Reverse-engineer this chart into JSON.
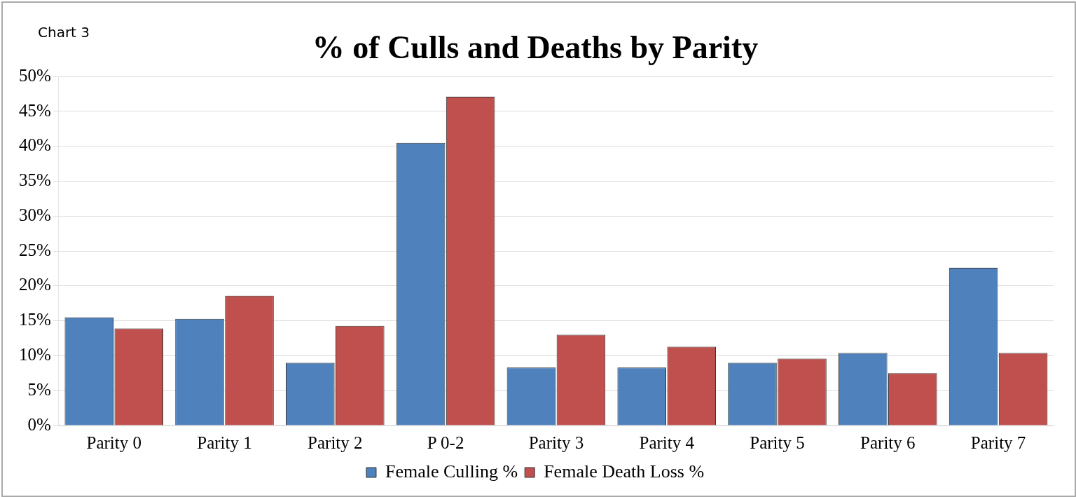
{
  "chart_data": {
    "type": "bar",
    "title": "% of Culls and Deaths by Parity",
    "annotations": [
      "Chart 3"
    ],
    "categories": [
      "Parity 0",
      "Parity 1",
      "Parity 2",
      "P 0-2",
      "Parity 3",
      "Parity 4",
      "Parity 5",
      "Parity 6",
      "Parity 7"
    ],
    "series": [
      {
        "name": "Female Culling %",
        "color": "#4f81bd",
        "values": [
          15.5,
          15.3,
          9.0,
          40.5,
          8.3,
          8.3,
          9.0,
          10.4,
          22.6
        ]
      },
      {
        "name": "Female Death Loss %",
        "color": "#c0504d",
        "values": [
          13.9,
          18.6,
          14.3,
          47.1,
          13.0,
          11.3,
          9.6,
          7.5,
          10.4
        ]
      }
    ],
    "ylim": [
      0,
      50
    ],
    "yticks": [
      {
        "value": 0,
        "label": "0%"
      },
      {
        "value": 5,
        "label": "5%"
      },
      {
        "value": 10,
        "label": "10%"
      },
      {
        "value": 15,
        "label": "15%"
      },
      {
        "value": 20,
        "label": "20%"
      },
      {
        "value": 25,
        "label": "25%"
      },
      {
        "value": 30,
        "label": "30%"
      },
      {
        "value": 35,
        "label": "35%"
      },
      {
        "value": 40,
        "label": "40%"
      },
      {
        "value": 45,
        "label": "45%"
      },
      {
        "value": 50,
        "label": "50%"
      }
    ],
    "grid": "y",
    "legend": "bottom"
  }
}
